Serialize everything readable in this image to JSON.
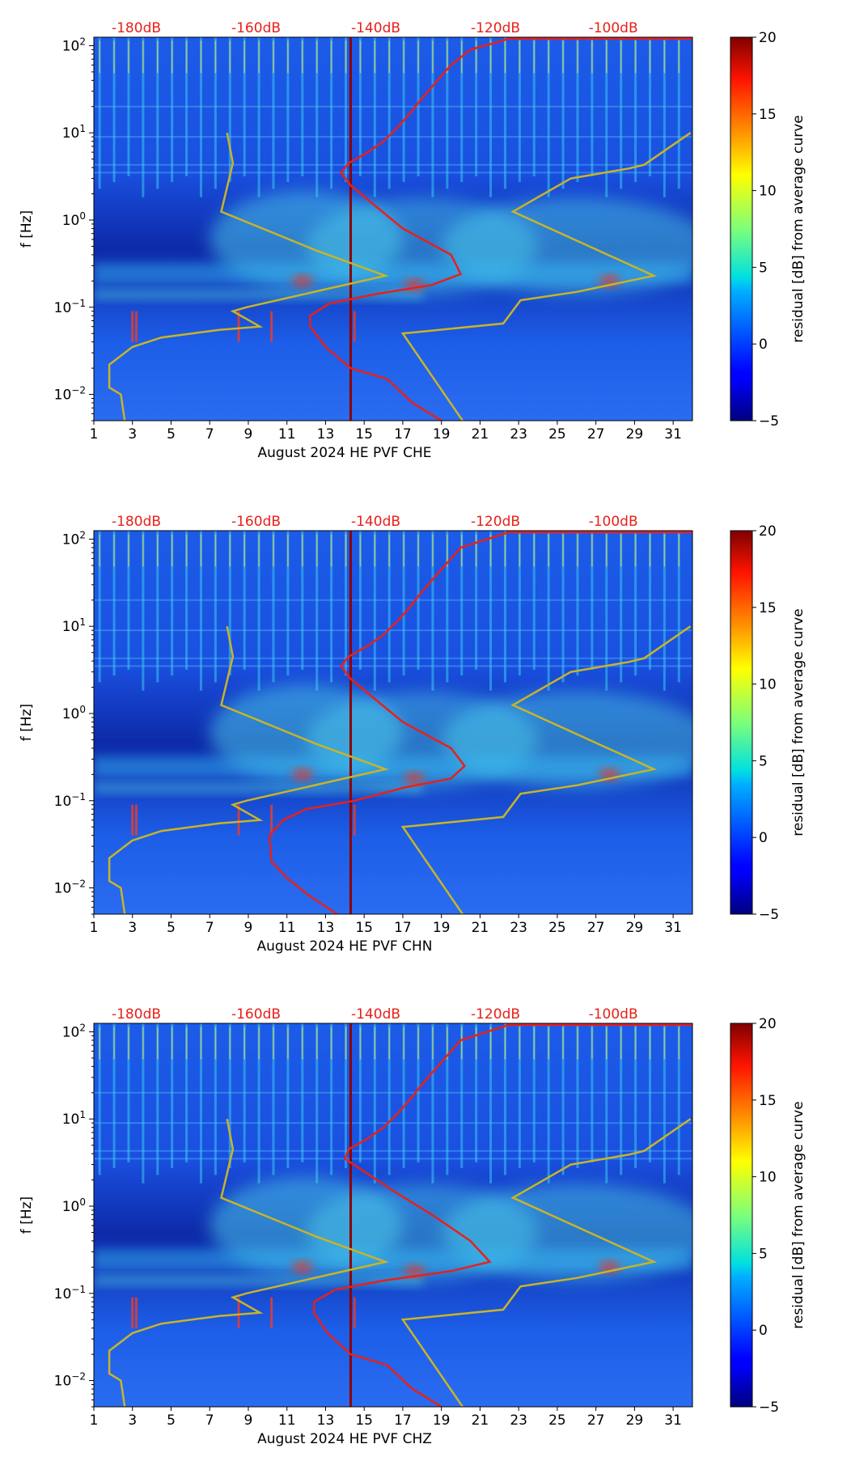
{
  "colors": {
    "average_curve": "#e8201a",
    "model_curve": "#c8b428",
    "db_label": "#e8201a",
    "marker_line": "#8b0000",
    "background": "#1a4ee0"
  },
  "chart_data": [
    {
      "type": "heatmap",
      "title": "",
      "xlabel": "August 2024 HE PVF  CHE",
      "ylabel": "f [Hz]",
      "colorbar_label": "residual [dB] from average curve",
      "colorbar_range": [
        -5,
        20
      ],
      "colorbar_ticks": [
        "20",
        "15",
        "10",
        "5",
        "0",
        "−5"
      ],
      "xlim": [
        1,
        32
      ],
      "x_ticks": [
        "1",
        "3",
        "5",
        "7",
        "9",
        "11",
        "13",
        "15",
        "17",
        "19",
        "21",
        "23",
        "25",
        "27",
        "29",
        "31"
      ],
      "ylim": [
        0.005,
        125
      ],
      "y_ticks": [
        {
          "base": "10",
          "exp": "2",
          "value": 100
        },
        {
          "base": "10",
          "exp": "1",
          "value": 10
        },
        {
          "base": "10",
          "exp": "0",
          "value": 1
        },
        {
          "base": "10",
          "exp": "−1",
          "value": 0.1
        },
        {
          "base": "10",
          "exp": "−2",
          "value": 0.01
        }
      ],
      "top_axis_labels": [
        "-180dB",
        "-160dB",
        "-140dB",
        "-120dB",
        "-100dB"
      ],
      "top_axis_values_dB": [
        -180,
        -160,
        -140,
        -120,
        -100
      ],
      "marker_day": 14.3,
      "average_curve": {
        "x": [
          19.0,
          17.5,
          16.2,
          14.3,
          13.0,
          12.2,
          12.2,
          13.2,
          15.5,
          18.5,
          20.0,
          19.5,
          17.0,
          15.5,
          14.3,
          13.8,
          14.2,
          15.2,
          16.0,
          16.8,
          17.4,
          18.0,
          18.8,
          19.5,
          20.5,
          22.5,
          32.0
        ],
        "f": [
          0.005,
          0.008,
          0.015,
          0.02,
          0.035,
          0.06,
          0.08,
          0.11,
          0.14,
          0.18,
          0.24,
          0.4,
          0.8,
          1.5,
          2.5,
          3.5,
          4.5,
          6.0,
          8.0,
          12.0,
          17.0,
          25.0,
          40.0,
          60.0,
          90.0,
          120.0,
          120.0
        ]
      },
      "model_curves": [
        {
          "x": [
            2.6,
            2.4,
            1.8,
            1.8,
            3.0,
            4.5,
            7.5,
            9.6,
            8.2,
            8.9,
            16.1,
            12.5,
            7.6,
            8.2,
            7.9
          ],
          "f": [
            0.005,
            0.01,
            0.012,
            0.022,
            0.035,
            0.045,
            0.055,
            0.06,
            0.09,
            0.1,
            0.23,
            0.45,
            1.25,
            4.5,
            10.0
          ]
        },
        {
          "x": [
            20.1,
            17.0,
            22.2,
            23.1,
            26.0,
            30.0,
            22.7,
            25.7,
            28.7,
            29.5,
            31.9
          ],
          "f": [
            0.005,
            0.05,
            0.065,
            0.12,
            0.15,
            0.23,
            1.25,
            3.0,
            3.9,
            4.3,
            10.0
          ]
        }
      ]
    },
    {
      "type": "heatmap",
      "title": "",
      "xlabel": "August 2024 HE PVF  CHN",
      "ylabel": "f [Hz]",
      "colorbar_label": "residual [dB] from average curve",
      "colorbar_range": [
        -5,
        20
      ],
      "colorbar_ticks": [
        "20",
        "15",
        "10",
        "5",
        "0",
        "−5"
      ],
      "xlim": [
        1,
        32
      ],
      "x_ticks": [
        "1",
        "3",
        "5",
        "7",
        "9",
        "11",
        "13",
        "15",
        "17",
        "19",
        "21",
        "23",
        "25",
        "27",
        "29",
        "31"
      ],
      "ylim": [
        0.005,
        125
      ],
      "y_ticks": [
        {
          "base": "10",
          "exp": "2",
          "value": 100
        },
        {
          "base": "10",
          "exp": "1",
          "value": 10
        },
        {
          "base": "10",
          "exp": "0",
          "value": 1
        },
        {
          "base": "10",
          "exp": "−1",
          "value": 0.1
        },
        {
          "base": "10",
          "exp": "−2",
          "value": 0.01
        }
      ],
      "top_axis_labels": [
        "-180dB",
        "-160dB",
        "-140dB",
        "-120dB",
        "-100dB"
      ],
      "top_axis_values_dB": [
        -180,
        -160,
        -140,
        -120,
        -100
      ],
      "marker_day": 14.3,
      "average_curve": {
        "x": [
          13.6,
          12.2,
          11.0,
          10.2,
          10.1,
          10.8,
          12.0,
          14.5,
          17.0,
          19.5,
          20.2,
          19.5,
          17.0,
          15.5,
          14.3,
          13.8,
          14.2,
          15.2,
          16.0,
          16.8,
          17.4,
          18.0,
          19.0,
          20.0,
          22.5,
          32.0
        ],
        "f": [
          0.005,
          0.008,
          0.013,
          0.02,
          0.04,
          0.06,
          0.08,
          0.1,
          0.14,
          0.18,
          0.25,
          0.4,
          0.8,
          1.5,
          2.5,
          3.5,
          4.5,
          6.0,
          8.0,
          12.0,
          17.0,
          25.0,
          45.0,
          80.0,
          120.0,
          120.0
        ]
      },
      "model_curves": [
        {
          "x": [
            2.6,
            2.4,
            1.8,
            1.8,
            3.0,
            4.5,
            7.5,
            9.6,
            8.2,
            8.9,
            16.1,
            12.5,
            7.6,
            8.2,
            7.9
          ],
          "f": [
            0.005,
            0.01,
            0.012,
            0.022,
            0.035,
            0.045,
            0.055,
            0.06,
            0.09,
            0.1,
            0.23,
            0.45,
            1.25,
            4.5,
            10.0
          ]
        },
        {
          "x": [
            20.1,
            17.0,
            22.2,
            23.1,
            26.0,
            30.0,
            22.7,
            25.7,
            28.7,
            29.5,
            31.9
          ],
          "f": [
            0.005,
            0.05,
            0.065,
            0.12,
            0.15,
            0.23,
            1.25,
            3.0,
            3.9,
            4.3,
            10.0
          ]
        }
      ]
    },
    {
      "type": "heatmap",
      "title": "",
      "xlabel": "August 2024 HE PVF  CHZ",
      "ylabel": "f [Hz]",
      "colorbar_label": "residual [dB] from average curve",
      "colorbar_range": [
        -5,
        20
      ],
      "colorbar_ticks": [
        "20",
        "15",
        "10",
        "5",
        "0",
        "−5"
      ],
      "xlim": [
        1,
        32
      ],
      "x_ticks": [
        "1",
        "3",
        "5",
        "7",
        "9",
        "11",
        "13",
        "15",
        "17",
        "19",
        "21",
        "23",
        "25",
        "27",
        "29",
        "31"
      ],
      "ylim": [
        0.005,
        125
      ],
      "y_ticks": [
        {
          "base": "10",
          "exp": "2",
          "value": 100
        },
        {
          "base": "10",
          "exp": "1",
          "value": 10
        },
        {
          "base": "10",
          "exp": "0",
          "value": 1
        },
        {
          "base": "10",
          "exp": "−1",
          "value": 0.1
        },
        {
          "base": "10",
          "exp": "−2",
          "value": 0.01
        }
      ],
      "top_axis_labels": [
        "-180dB",
        "-160dB",
        "-140dB",
        "-120dB",
        "-100dB"
      ],
      "top_axis_values_dB": [
        -180,
        -160,
        -140,
        -120,
        -100
      ],
      "marker_day": 14.3,
      "average_curve": {
        "x": [
          19.0,
          17.5,
          16.2,
          14.3,
          13.1,
          12.4,
          12.4,
          13.5,
          16.0,
          19.5,
          21.5,
          20.5,
          18.5,
          16.5,
          15.0,
          14.0,
          14.2,
          15.2,
          16.0,
          16.8,
          17.4,
          18.0,
          19.0,
          20.0,
          22.5,
          32.0
        ],
        "f": [
          0.005,
          0.008,
          0.015,
          0.02,
          0.035,
          0.06,
          0.08,
          0.11,
          0.14,
          0.18,
          0.23,
          0.4,
          0.8,
          1.5,
          2.5,
          3.5,
          4.5,
          6.0,
          8.0,
          12.0,
          17.0,
          25.0,
          45.0,
          80.0,
          120.0,
          120.0
        ]
      },
      "model_curves": [
        {
          "x": [
            2.6,
            2.4,
            1.8,
            1.8,
            3.0,
            4.5,
            7.5,
            9.6,
            8.2,
            8.9,
            16.1,
            12.5,
            7.6,
            8.2,
            7.9
          ],
          "f": [
            0.005,
            0.01,
            0.012,
            0.022,
            0.035,
            0.045,
            0.055,
            0.06,
            0.09,
            0.1,
            0.23,
            0.45,
            1.25,
            4.5,
            10.0
          ]
        },
        {
          "x": [
            20.1,
            17.0,
            22.2,
            23.1,
            26.0,
            30.0,
            22.7,
            25.7,
            28.7,
            29.5,
            31.9
          ],
          "f": [
            0.005,
            0.05,
            0.065,
            0.12,
            0.15,
            0.23,
            1.25,
            3.0,
            3.9,
            4.3,
            10.0
          ]
        }
      ]
    }
  ]
}
